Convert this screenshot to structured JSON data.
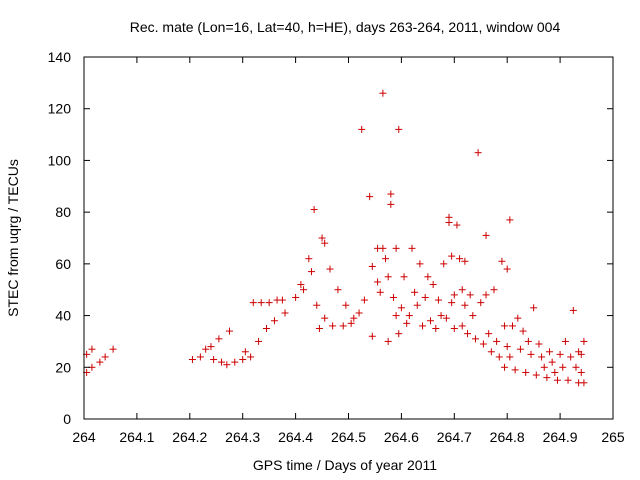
{
  "chart_data": {
    "type": "scatter",
    "title": "Rec. mate (Lon=16, Lat=40, h=HE), days 263-264, 2011, window 004",
    "xlabel": "GPS time / Days of year 2011",
    "ylabel": "STEC from uqrg / TECUs",
    "xlim": [
      264,
      265
    ],
    "ylim": [
      0,
      140
    ],
    "xticks": [
      "264",
      "264.1",
      "264.2",
      "264.3",
      "264.4",
      "264.5",
      "264.6",
      "264.7",
      "264.8",
      "264.9",
      "265"
    ],
    "yticks": [
      "0",
      "20",
      "40",
      "60",
      "80",
      "100",
      "120",
      "140"
    ],
    "marker": "+",
    "color": "#cc0000",
    "grid": false,
    "series": [
      {
        "name": "STEC",
        "points": [
          [
            264.005,
            18
          ],
          [
            264.005,
            25
          ],
          [
            264.015,
            20
          ],
          [
            264.015,
            27
          ],
          [
            264.03,
            22
          ],
          [
            264.04,
            24
          ],
          [
            264.055,
            27
          ],
          [
            264.205,
            23
          ],
          [
            264.22,
            24
          ],
          [
            264.23,
            27
          ],
          [
            264.24,
            28
          ],
          [
            264.245,
            23
          ],
          [
            264.255,
            31
          ],
          [
            264.26,
            22
          ],
          [
            264.27,
            21
          ],
          [
            264.275,
            34
          ],
          [
            264.285,
            22
          ],
          [
            264.3,
            23
          ],
          [
            264.305,
            26
          ],
          [
            264.315,
            24
          ],
          [
            264.32,
            45
          ],
          [
            264.33,
            30
          ],
          [
            264.335,
            45
          ],
          [
            264.345,
            35
          ],
          [
            264.35,
            45
          ],
          [
            264.36,
            38
          ],
          [
            264.365,
            46
          ],
          [
            264.375,
            46
          ],
          [
            264.38,
            41
          ],
          [
            264.4,
            47
          ],
          [
            264.41,
            52
          ],
          [
            264.415,
            50
          ],
          [
            264.425,
            62
          ],
          [
            264.43,
            57
          ],
          [
            264.435,
            81
          ],
          [
            264.44,
            44
          ],
          [
            264.445,
            35
          ],
          [
            264.45,
            70
          ],
          [
            264.455,
            68
          ],
          [
            264.455,
            39
          ],
          [
            264.465,
            58
          ],
          [
            264.47,
            36
          ],
          [
            264.48,
            50
          ],
          [
            264.49,
            36
          ],
          [
            264.495,
            44
          ],
          [
            264.505,
            37
          ],
          [
            264.51,
            39
          ],
          [
            264.52,
            41
          ],
          [
            264.525,
            112
          ],
          [
            264.53,
            46
          ],
          [
            264.54,
            86
          ],
          [
            264.545,
            59
          ],
          [
            264.545,
            32
          ],
          [
            264.555,
            53
          ],
          [
            264.555,
            66
          ],
          [
            264.56,
            49
          ],
          [
            264.565,
            126
          ],
          [
            264.565,
            66
          ],
          [
            264.57,
            62
          ],
          [
            264.575,
            55
          ],
          [
            264.575,
            30
          ],
          [
            264.58,
            87
          ],
          [
            264.58,
            83
          ],
          [
            264.585,
            47
          ],
          [
            264.59,
            40
          ],
          [
            264.59,
            66
          ],
          [
            264.595,
            112
          ],
          [
            264.595,
            33
          ],
          [
            264.6,
            43
          ],
          [
            264.605,
            55
          ],
          [
            264.61,
            37
          ],
          [
            264.615,
            40
          ],
          [
            264.62,
            66
          ],
          [
            264.625,
            49
          ],
          [
            264.63,
            44
          ],
          [
            264.635,
            60
          ],
          [
            264.64,
            36
          ],
          [
            264.645,
            47
          ],
          [
            264.65,
            55
          ],
          [
            264.655,
            38
          ],
          [
            264.66,
            52
          ],
          [
            264.665,
            35
          ],
          [
            264.67,
            46
          ],
          [
            264.675,
            40
          ],
          [
            264.68,
            60
          ],
          [
            264.685,
            39
          ],
          [
            264.69,
            78
          ],
          [
            264.69,
            76
          ],
          [
            264.695,
            63
          ],
          [
            264.695,
            45
          ],
          [
            264.7,
            48
          ],
          [
            264.7,
            35
          ],
          [
            264.705,
            75
          ],
          [
            264.71,
            62
          ],
          [
            264.715,
            50
          ],
          [
            264.715,
            36
          ],
          [
            264.72,
            61
          ],
          [
            264.72,
            44
          ],
          [
            264.725,
            33
          ],
          [
            264.73,
            48
          ],
          [
            264.735,
            40
          ],
          [
            264.74,
            31
          ],
          [
            264.745,
            103
          ],
          [
            264.75,
            45
          ],
          [
            264.755,
            29
          ],
          [
            264.76,
            71
          ],
          [
            264.76,
            48
          ],
          [
            264.765,
            33
          ],
          [
            264.77,
            26
          ],
          [
            264.775,
            50
          ],
          [
            264.78,
            30
          ],
          [
            264.785,
            24
          ],
          [
            264.79,
            61
          ],
          [
            264.795,
            36
          ],
          [
            264.795,
            20
          ],
          [
            264.8,
            58
          ],
          [
            264.8,
            28
          ],
          [
            264.805,
            77
          ],
          [
            264.805,
            24
          ],
          [
            264.81,
            36
          ],
          [
            264.815,
            19
          ],
          [
            264.82,
            39
          ],
          [
            264.825,
            27
          ],
          [
            264.83,
            34
          ],
          [
            264.835,
            18
          ],
          [
            264.84,
            30
          ],
          [
            264.845,
            25
          ],
          [
            264.85,
            43
          ],
          [
            264.855,
            17
          ],
          [
            264.86,
            29
          ],
          [
            264.865,
            24
          ],
          [
            264.87,
            20
          ],
          [
            264.875,
            16
          ],
          [
            264.88,
            26
          ],
          [
            264.885,
            22
          ],
          [
            264.89,
            18
          ],
          [
            264.895,
            15
          ],
          [
            264.9,
            25
          ],
          [
            264.905,
            20
          ],
          [
            264.91,
            30
          ],
          [
            264.915,
            15
          ],
          [
            264.92,
            24
          ],
          [
            264.925,
            42
          ],
          [
            264.93,
            20
          ],
          [
            264.935,
            14
          ],
          [
            264.935,
            26
          ],
          [
            264.94,
            18
          ],
          [
            264.94,
            25
          ],
          [
            264.945,
            30
          ],
          [
            264.945,
            14
          ]
        ]
      }
    ]
  }
}
